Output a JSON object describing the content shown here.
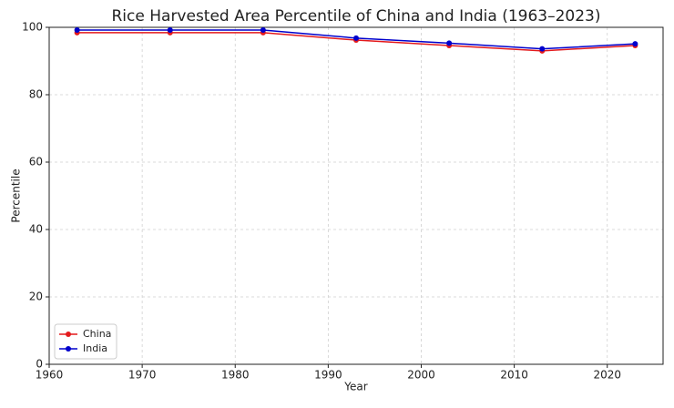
{
  "chart_data": {
    "type": "line",
    "title": "Rice Harvested Area Percentile of China and India (1963–2023)",
    "x_label": "Year",
    "y_label": "Percentile",
    "x": [
      1963,
      1973,
      1983,
      1993,
      2003,
      2013,
      2023
    ],
    "series": [
      {
        "name": "China",
        "color": "#e41a1c",
        "values": [
          98.4,
          98.4,
          98.4,
          96.2,
          94.6,
          93.0,
          94.6
        ]
      },
      {
        "name": "India",
        "color": "#0000cc",
        "values": [
          99.2,
          99.2,
          99.2,
          96.8,
          95.3,
          93.6,
          95.1
        ]
      }
    ],
    "xlim": [
      1960,
      2026
    ],
    "xticks": [
      1960,
      1970,
      1980,
      1990,
      2000,
      2010,
      2020
    ],
    "ylim": [
      0,
      100
    ],
    "yticks": [
      0,
      20,
      40,
      60,
      80,
      100
    ],
    "grid": true,
    "legend": "lower left"
  }
}
